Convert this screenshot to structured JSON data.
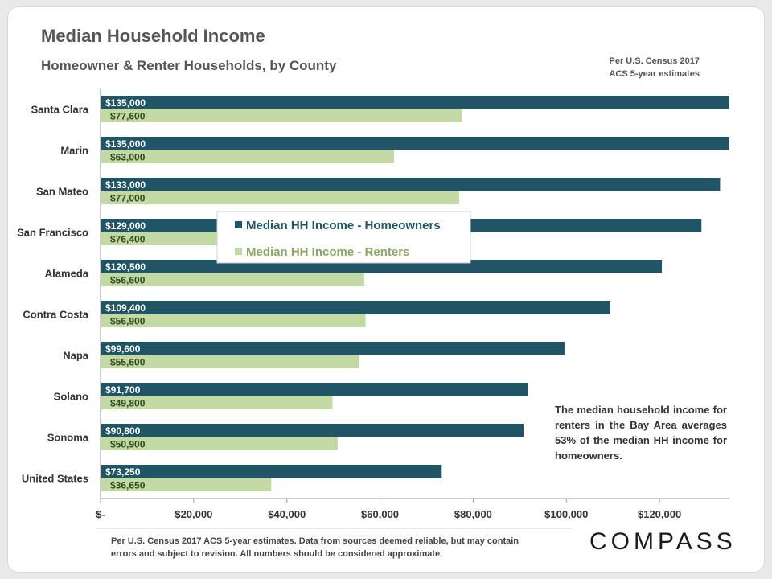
{
  "header": {
    "title": "Median Household Income",
    "subtitle": "Homeowner & Renter Households,  by County",
    "source_line1": "Per U.S. Census 2017",
    "source_line2": "ACS 5-year estimates"
  },
  "callout": "The median household income for renters in the Bay Area averages 53% of the median HH income for homeowners.",
  "footnote": "Per U.S. Census 2017 ACS 5-year estimates. Data from sources deemed reliable, but may contain errors and subject to revision. All numbers should be considered approximate.",
  "logo": "COMPASS",
  "colors": {
    "homeowners": "#1f5564",
    "renters": "#c3d9a4",
    "label_light": "#ffffff",
    "label_dark": "#2d4a1e",
    "legend_renter_text": "#8aa65f"
  },
  "chart_data": {
    "type": "bar",
    "orientation": "horizontal",
    "categories": [
      "Santa Clara",
      "Marin",
      "San Mateo",
      "San Francisco",
      "Alameda",
      "Contra Costa",
      "Napa",
      "Solano",
      "Sonoma",
      "United States"
    ],
    "series": [
      {
        "name": "Median HH Income - Homeowners",
        "values": [
          135000,
          135000,
          133000,
          129000,
          120500,
          109400,
          99600,
          91700,
          90800,
          73250
        ],
        "labels": [
          "$135,000",
          "$135,000",
          "$133,000",
          "$129,000",
          "$120,500",
          "$109,400",
          "$99,600",
          "$91,700",
          "$90,800",
          "$73,250"
        ]
      },
      {
        "name": "Median HH Income - Renters",
        "values": [
          77600,
          63000,
          77000,
          76400,
          56600,
          56900,
          55600,
          49800,
          50900,
          36650
        ],
        "labels": [
          "$77,600",
          "$63,000",
          "$77,000",
          "$76,400",
          "$56,600",
          "$56,900",
          "$55,600",
          "$49,800",
          "$50,900",
          "$36,650"
        ]
      }
    ],
    "xlim": [
      0,
      135000
    ],
    "xticks": [
      0,
      20000,
      40000,
      60000,
      80000,
      100000,
      120000
    ],
    "xtick_labels": [
      "$-",
      "$20,000",
      "$40,000",
      "$60,000",
      "$80,000",
      "$100,000",
      "$120,000"
    ],
    "legend_position": "center-left inside plot"
  }
}
